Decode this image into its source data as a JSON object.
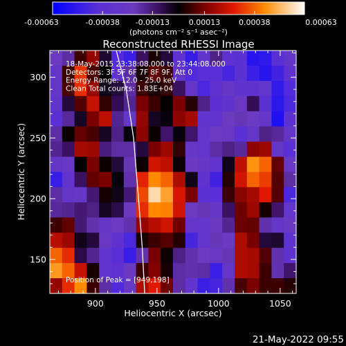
{
  "colorbar": {
    "unit_label": "(photons cm⁻² s⁻¹ asec⁻²)",
    "tick_labels": [
      "-0.00063",
      "-0.00038",
      "-0.00013",
      "0.00013",
      "0.00038",
      "0.00063"
    ],
    "range": [
      -0.00063,
      0.00063
    ]
  },
  "chart_data": {
    "type": "heatmap",
    "title": "Reconstructed RHESSI Image",
    "xlabel": "Heliocentric X (arcsec)",
    "ylabel": "Heliocentric Y (arcsec)",
    "xlim": [
      863,
      1063
    ],
    "ylim": [
      122,
      322
    ],
    "xticks": [
      900,
      950,
      1000,
      1050
    ],
    "yticks": [
      150,
      200,
      250,
      300
    ],
    "annotations": [
      "18-May-2015 23:38:08.000 to 23:44:08.000",
      "Detectors: 3F 5F 6F 7F 8F 9F, Att 0",
      "Energy Range: 12.0 - 25.0 keV",
      "Clean     Total counts: 1.83E+04"
    ],
    "peak_label": "Position of Peak = [949,198]",
    "peak_position": [
      949,
      198
    ],
    "limb_curve": [
      [
        917,
        322
      ],
      [
        925,
        290
      ],
      [
        931,
        250
      ],
      [
        935,
        200
      ],
      [
        938,
        160
      ],
      [
        940,
        122
      ]
    ],
    "intensity_grid": {
      "rows_top_to_bottom": [
        [
          0.32,
          0.35,
          0.55,
          0.63,
          0.46,
          0.16,
          0.12,
          0.42,
          0.52,
          0.45,
          0.22,
          0.11,
          0.24,
          0.38,
          0.22,
          0.2,
          0.08,
          0.09,
          0.18,
          0.26
        ],
        [
          0.26,
          0.55,
          0.75,
          0.56,
          0.5,
          0.22,
          0.35,
          0.52,
          0.58,
          0.55,
          0.25,
          0.16,
          0.18,
          0.18,
          0.14,
          0.2,
          0.12,
          0.08,
          0.13,
          0.22
        ],
        [
          0.27,
          0.56,
          0.74,
          0.63,
          0.48,
          0.45,
          0.35,
          0.55,
          0.52,
          0.54,
          0.42,
          0.27,
          0.15,
          0.22,
          0.28,
          0.23,
          0.23,
          0.25,
          0.1,
          0.16
        ],
        [
          0.24,
          0.45,
          0.57,
          0.69,
          0.54,
          0.43,
          0.37,
          0.6,
          0.55,
          0.5,
          0.6,
          0.53,
          0.38,
          0.21,
          0.23,
          0.3,
          0.43,
          0.2,
          0.09,
          0.15
        ],
        [
          0.19,
          0.36,
          0.47,
          0.6,
          0.68,
          0.37,
          0.28,
          0.63,
          0.47,
          0.49,
          0.62,
          0.65,
          0.24,
          0.24,
          0.32,
          0.33,
          0.32,
          0.27,
          0.06,
          0.21
        ],
        [
          0.35,
          0.51,
          0.58,
          0.56,
          0.47,
          0.38,
          0.49,
          0.62,
          0.51,
          0.41,
          0.49,
          0.41,
          0.25,
          0.32,
          0.3,
          0.19,
          0.27,
          0.38,
          0.36,
          0.27
        ],
        [
          0.37,
          0.42,
          0.65,
          0.64,
          0.39,
          0.35,
          0.35,
          0.45,
          0.6,
          0.64,
          0.54,
          0.28,
          0.25,
          0.35,
          0.38,
          0.36,
          0.62,
          0.64,
          0.27,
          0.18
        ],
        [
          0.27,
          0.29,
          0.5,
          0.6,
          0.51,
          0.45,
          0.33,
          0.51,
          0.7,
          0.68,
          0.51,
          0.31,
          0.28,
          0.24,
          0.48,
          0.68,
          0.85,
          0.8,
          0.58,
          0.29
        ],
        [
          0.11,
          0.24,
          0.42,
          0.58,
          0.6,
          0.49,
          0.34,
          0.73,
          0.84,
          0.8,
          0.66,
          0.48,
          0.23,
          0.13,
          0.53,
          0.7,
          0.8,
          0.76,
          0.57,
          0.35
        ],
        [
          0.35,
          0.27,
          0.28,
          0.4,
          0.52,
          0.48,
          0.4,
          0.77,
          0.95,
          0.87,
          0.71,
          0.6,
          0.2,
          0.18,
          0.55,
          0.62,
          0.65,
          0.72,
          0.57,
          0.15
        ],
        [
          0.36,
          0.37,
          0.4,
          0.38,
          0.47,
          0.44,
          0.31,
          0.74,
          0.84,
          0.83,
          0.7,
          0.32,
          0.33,
          0.28,
          0.42,
          0.59,
          0.64,
          0.52,
          0.41,
          0.25
        ],
        [
          0.55,
          0.58,
          0.4,
          0.34,
          0.28,
          0.32,
          0.34,
          0.63,
          0.67,
          0.7,
          0.59,
          0.26,
          0.25,
          0.31,
          0.37,
          0.59,
          0.58,
          0.34,
          0.27,
          0.3
        ],
        [
          0.67,
          0.64,
          0.48,
          0.45,
          0.3,
          0.22,
          0.15,
          0.52,
          0.55,
          0.57,
          0.53,
          0.14,
          0.25,
          0.33,
          0.31,
          0.66,
          0.6,
          0.45,
          0.46,
          0.22
        ],
        [
          0.8,
          0.74,
          0.44,
          0.37,
          0.24,
          0.18,
          0.11,
          0.34,
          0.6,
          0.51,
          0.38,
          0.34,
          0.32,
          0.3,
          0.33,
          0.66,
          0.65,
          0.57,
          0.34,
          0.22
        ],
        [
          0.86,
          0.8,
          0.69,
          0.52,
          0.24,
          0.22,
          0.31,
          0.55,
          0.61,
          0.52,
          0.35,
          0.34,
          0.35,
          0.12,
          0.26,
          0.66,
          0.65,
          0.55,
          0.34,
          0.41
        ],
        [
          0.63,
          0.74,
          0.84,
          0.55,
          0.35,
          0.16,
          0.29,
          0.66,
          0.72,
          0.59,
          0.35,
          0.24,
          0.12,
          0.14,
          0.34,
          0.56,
          0.6,
          0.55,
          0.55,
          0.53
        ]
      ]
    }
  },
  "footer": {
    "timestamp": "21-May-2022 09:55"
  }
}
